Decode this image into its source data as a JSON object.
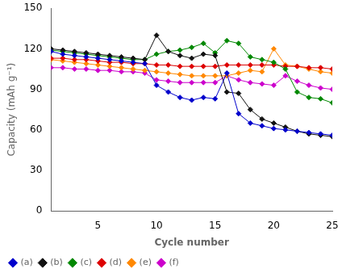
{
  "chart_data": {
    "type": "line",
    "xlabel": "Cycle number",
    "ylabel": "Capacity (mAh g⁻¹)",
    "x": [
      1,
      2,
      3,
      4,
      5,
      6,
      7,
      8,
      9,
      10,
      11,
      12,
      13,
      14,
      15,
      16,
      17,
      18,
      19,
      20,
      21,
      22,
      23,
      24,
      25
    ],
    "xlim": [
      1,
      25
    ],
    "ylim": [
      0,
      150
    ],
    "xticks": [
      5,
      10,
      15,
      20,
      25
    ],
    "yticks": [
      0,
      30,
      60,
      90,
      120,
      150
    ],
    "grid": false,
    "legend": "lower left",
    "marker": "diamond",
    "series": [
      {
        "name": "(a)",
        "color": "#0000CC",
        "values": [
          118,
          116,
          115,
          114,
          113,
          112,
          111,
          110,
          109,
          93,
          88,
          84,
          82,
          84,
          83,
          102,
          72,
          65,
          63,
          61,
          60,
          59,
          58,
          57,
          56
        ]
      },
      {
        "name": "(b)",
        "color": "#111111",
        "values": [
          120,
          119,
          118,
          117,
          116,
          115,
          114,
          113,
          112,
          130,
          118,
          115,
          113,
          116,
          115,
          88,
          87,
          75,
          68,
          65,
          62,
          59,
          57,
          56,
          55
        ]
      },
      {
        "name": "(c)",
        "color": "#008800",
        "values": [
          119,
          118,
          117,
          116,
          115,
          114,
          113,
          112,
          112,
          116,
          118,
          119,
          121,
          124,
          117,
          126,
          124,
          114,
          112,
          110,
          105,
          88,
          84,
          83,
          80
        ]
      },
      {
        "name": "(d)",
        "color": "#DD0000",
        "values": [
          113,
          113,
          112,
          112,
          111,
          110,
          110,
          109,
          109,
          108,
          108,
          107,
          107,
          107,
          107,
          108,
          108,
          108,
          108,
          108,
          107,
          107,
          106,
          106,
          105
        ]
      },
      {
        "name": "(e)",
        "color": "#FF8800",
        "values": [
          112,
          111,
          110,
          109,
          108,
          107,
          106,
          105,
          104,
          103,
          102,
          101,
          100,
          100,
          100,
          100,
          102,
          104,
          103,
          120,
          108,
          107,
          105,
          103,
          102
        ]
      },
      {
        "name": "(f)",
        "color": "#CC00CC",
        "values": [
          106,
          106,
          105,
          105,
          104,
          104,
          103,
          103,
          102,
          97,
          96,
          95,
          95,
          95,
          95,
          100,
          97,
          95,
          94,
          93,
          100,
          96,
          93,
          91,
          90
        ]
      }
    ]
  }
}
